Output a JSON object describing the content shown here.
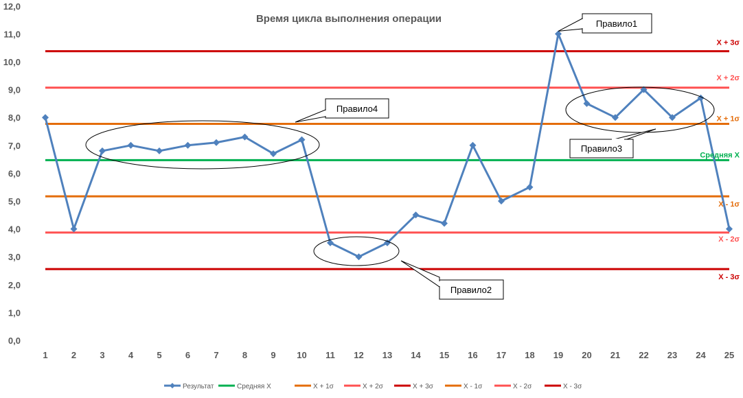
{
  "chart_data": {
    "type": "line",
    "title": "Время цикла выполнения операции",
    "xlabel": "",
    "ylabel": "",
    "ylim": [
      0,
      12
    ],
    "y_ticks": [
      "0,0",
      "1,0",
      "2,0",
      "3,0",
      "4,0",
      "5,0",
      "6,0",
      "7,0",
      "8,0",
      "9,0",
      "10,0",
      "11,0",
      "12,0"
    ],
    "categories": [
      "1",
      "2",
      "3",
      "4",
      "5",
      "6",
      "7",
      "8",
      "9",
      "10",
      "11",
      "12",
      "13",
      "14",
      "15",
      "16",
      "17",
      "18",
      "19",
      "20",
      "21",
      "22",
      "23",
      "24",
      "25"
    ],
    "grid": false,
    "legend_position": "bottom",
    "series": [
      {
        "name": "Результат",
        "color": "#4f81bd",
        "marker": "diamond",
        "values": [
          8.0,
          4.0,
          6.8,
          7.0,
          6.8,
          7.0,
          7.1,
          7.3,
          6.7,
          7.2,
          3.5,
          3.0,
          3.5,
          4.5,
          4.2,
          7.0,
          5.0,
          5.5,
          11.0,
          8.5,
          8.0,
          9.0,
          8.0,
          8.7,
          4.0
        ]
      },
      {
        "name": "Средняя X",
        "color": "#00b050",
        "constant": 6.47,
        "label": "Средняя X"
      },
      {
        "name": "X + 1σ",
        "color": "#e46c0a",
        "constant": 7.77,
        "label": "X + 1σ"
      },
      {
        "name": "X + 2σ",
        "color": "#ff5050",
        "constant": 9.07,
        "label": "X + 2σ"
      },
      {
        "name": "X + 3σ",
        "color": "#cc0000",
        "constant": 10.38,
        "label": "X + 3σ"
      },
      {
        "name": "X - 1σ",
        "color": "#e46c0a",
        "constant": 5.17,
        "label": "X - 1σ"
      },
      {
        "name": "X - 2σ",
        "color": "#ff5050",
        "constant": 3.87,
        "label": "X - 2σ"
      },
      {
        "name": "X - 3σ",
        "color": "#cc0000",
        "constant": 2.56,
        "label": "X - 3σ"
      }
    ],
    "annotations": [
      {
        "text": "Правило1",
        "points": [
          19
        ]
      },
      {
        "text": "Правило2",
        "points": [
          11,
          12,
          13
        ]
      },
      {
        "text": "Правило3",
        "points": [
          20,
          21,
          22,
          23,
          24
        ]
      },
      {
        "text": "Правило4",
        "points": [
          3,
          4,
          5,
          6,
          7,
          8,
          9,
          10
        ]
      }
    ]
  }
}
